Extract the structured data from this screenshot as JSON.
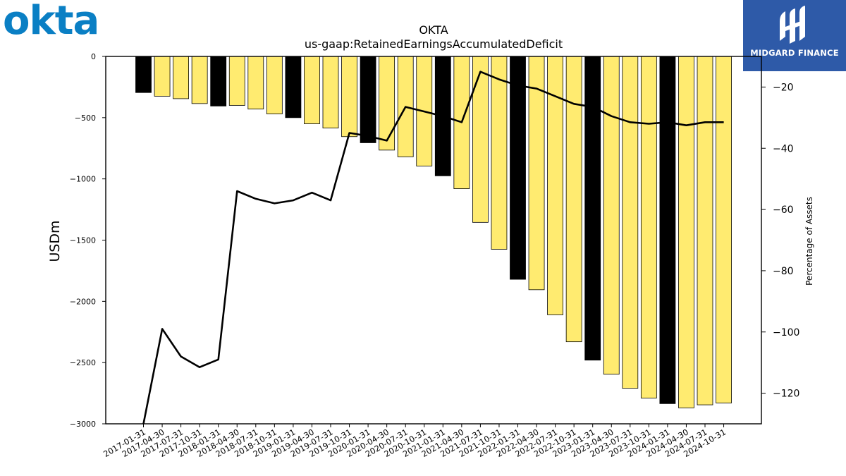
{
  "logo": {
    "text": "okta",
    "color": "#0a7fc4"
  },
  "brand": {
    "name": "MIDGARD FINANCE",
    "background": "#2e5aa8"
  },
  "chart_data": {
    "type": "bar",
    "title": "OKTA",
    "subtitle": "us-gaap:RetainedEarningsAccumulatedDeficit",
    "ylabel": "USDm",
    "y2label": "Percentage of Assets",
    "ylim": [
      -3000,
      0
    ],
    "y2lim": [
      -130,
      -10
    ],
    "yticks": [
      0,
      -500,
      -1000,
      -1500,
      -2000,
      -2500,
      -3000
    ],
    "y2ticks": [
      -20,
      -40,
      -60,
      -80,
      -100,
      -120
    ],
    "grid": false,
    "colors": {
      "bar_q4": "#000000",
      "bar_other": "#ffeb70",
      "line": "#000000"
    },
    "categories": [
      "2017-01-31",
      "2017-04-30",
      "2017-07-31",
      "2017-10-31",
      "2018-01-31",
      "2018-04-30",
      "2018-07-31",
      "2018-10-31",
      "2019-01-31",
      "2019-04-30",
      "2019-07-31",
      "2019-10-31",
      "2020-01-31",
      "2020-04-30",
      "2020-07-31",
      "2020-10-31",
      "2021-01-31",
      "2021-04-30",
      "2021-07-31",
      "2021-10-31",
      "2022-01-31",
      "2022-04-30",
      "2022-07-31",
      "2022-10-31",
      "2023-01-31",
      "2023-04-30",
      "2023-07-31",
      "2023-10-31",
      "2024-01-31",
      "2024-04-30",
      "2024-07-31",
      "2024-10-31"
    ],
    "series": [
      {
        "values": [
          -295,
          -325,
          -345,
          -385,
          -405,
          -400,
          -430,
          -470,
          -500,
          -550,
          -585,
          -655,
          -705,
          -765,
          -820,
          -895,
          -975,
          -1080,
          -1355,
          -1575,
          -1820,
          -1905,
          -2110,
          -2330,
          -2480,
          -2595,
          -2710,
          -2790,
          -2835,
          -2870,
          -2845,
          -2830
        ]
      },
      {
        "axis": "secondary",
        "values": [
          -135,
          -99,
          -108,
          -111.5,
          -109,
          -54,
          -56.5,
          -58,
          -57,
          -54.5,
          -57,
          -35,
          -36,
          -37.5,
          -26.5,
          -28,
          -29.5,
          -31.5,
          -15,
          -17.5,
          -19.5,
          -20.5,
          -23,
          -25.5,
          -26.5,
          -29.5,
          -31.5,
          -32,
          -31.5,
          -32.5,
          -31.5,
          -31.5
        ]
      }
    ]
  }
}
